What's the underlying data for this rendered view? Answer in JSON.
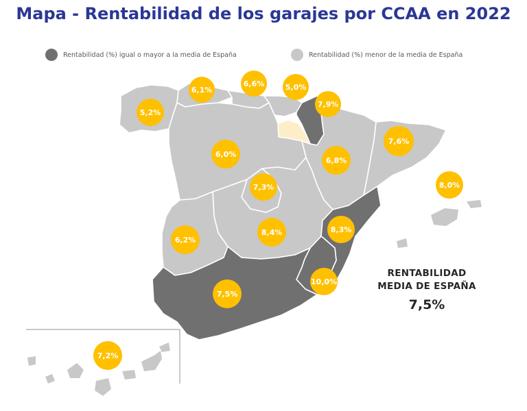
{
  "title": "Mapa - Rentabilidad de los garajes por CCAA en 2022",
  "legend": {
    "above": {
      "label": "Rentabilidad (%) igual o mayor a la media de España",
      "color": "#707070"
    },
    "below": {
      "label": "Rentabilidad (%) menor de la media de España",
      "color": "#c8c8c8"
    }
  },
  "colors": {
    "badge": "#ffc000",
    "above": "#707070",
    "below": "#c8c8c8",
    "la_rioja": "#fdeec8"
  },
  "national_average": {
    "label_line1": "RENTABILIDAD",
    "label_line2": "MEDIA DE ESPAÑA",
    "value": "7,5%"
  },
  "regions": [
    {
      "id": "galicia",
      "value": "5,2%",
      "status": "below"
    },
    {
      "id": "asturias",
      "value": "6,1%",
      "status": "below"
    },
    {
      "id": "cantabria",
      "value": "6,6%",
      "status": "below"
    },
    {
      "id": "pais-vasco",
      "value": "5,0%",
      "status": "below"
    },
    {
      "id": "navarra",
      "value": "7,9%",
      "status": "above"
    },
    {
      "id": "la-rioja",
      "value": "",
      "status": "no-data"
    },
    {
      "id": "aragon",
      "value": "6,8%",
      "status": "below"
    },
    {
      "id": "cataluna",
      "value": "7,6%",
      "status": "above"
    },
    {
      "id": "baleares",
      "value": "8,0%",
      "status": "above"
    },
    {
      "id": "castilla-y-leon",
      "value": "6,0%",
      "status": "below"
    },
    {
      "id": "madrid",
      "value": "7,3%",
      "status": "below"
    },
    {
      "id": "extremadura",
      "value": "6,2%",
      "status": "below"
    },
    {
      "id": "castilla-la-mancha",
      "value": "8,4%",
      "status": "above"
    },
    {
      "id": "valencia",
      "value": "8,3%",
      "status": "above"
    },
    {
      "id": "murcia",
      "value": "10,0%",
      "status": "above"
    },
    {
      "id": "andalucia",
      "value": "7,5%",
      "status": "above"
    },
    {
      "id": "canarias",
      "value": "7,2%",
      "status": "below"
    }
  ]
}
